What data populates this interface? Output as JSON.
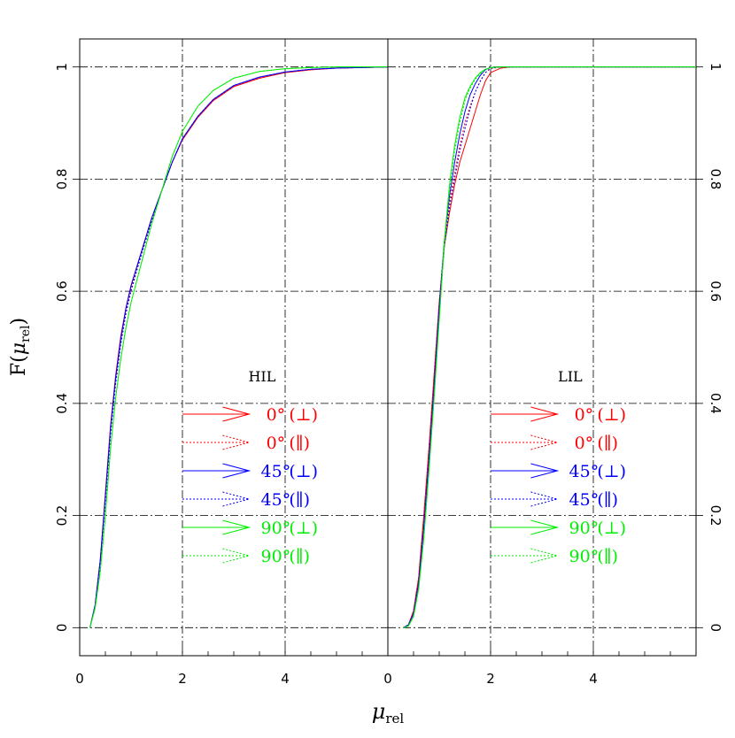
{
  "chart_data": {
    "type": "line",
    "ylabel_main": "F(",
    "ylabel_mu": "μ",
    "ylabel_sub": "rel",
    "ylabel_close": ")",
    "xlabel_mu": "μ",
    "xlabel_sub": "rel",
    "xlim": [
      0,
      6
    ],
    "ylim": [
      -0.05,
      1.05
    ],
    "x_ticks": [
      0,
      2,
      4
    ],
    "x_minor_step": 0.5,
    "y_ticks": [
      0,
      0.2,
      0.4,
      0.6,
      0.8,
      1
    ],
    "y_tick_labels": [
      "0",
      "0.2",
      "0.4",
      "0.6",
      "0.8",
      "1"
    ],
    "x_gridlines": [
      2,
      4
    ],
    "y_gridlines": [
      0,
      0.2,
      0.4,
      0.6,
      0.8,
      1
    ],
    "grid": true,
    "colors": {
      "red": "#ff0000",
      "blue": "#0000ff",
      "green": "#00ee00"
    },
    "legend_entries": [
      {
        "angle": "0°",
        "pol": "(⊥)",
        "color": "red",
        "style": "solid"
      },
      {
        "angle": "0°",
        "pol": "(∥)",
        "color": "red",
        "style": "dotted"
      },
      {
        "angle": "45°",
        "pol": "(⊥)",
        "color": "blue",
        "style": "solid"
      },
      {
        "angle": "45°",
        "pol": "(∥)",
        "color": "blue",
        "style": "dotted"
      },
      {
        "angle": "90°",
        "pol": "(⊥)",
        "color": "green",
        "style": "solid"
      },
      {
        "angle": "90°",
        "pol": "(∥)",
        "color": "green",
        "style": "dotted"
      }
    ],
    "panels": [
      {
        "title": "HIL",
        "legend_position": "center",
        "series": [
          {
            "color": "red",
            "style": "solid",
            "x": [
              0.2,
              0.3,
              0.4,
              0.5,
              0.6,
              0.7,
              0.8,
              0.9,
              1.0,
              1.2,
              1.4,
              1.6,
              1.8,
              2.0,
              2.3,
              2.6,
              3.0,
              3.5,
              4.0,
              4.5,
              5.0,
              5.5,
              6.0
            ],
            "y": [
              0,
              0.04,
              0.12,
              0.24,
              0.36,
              0.45,
              0.52,
              0.57,
              0.61,
              0.67,
              0.73,
              0.78,
              0.83,
              0.87,
              0.91,
              0.94,
              0.965,
              0.98,
              0.99,
              0.995,
              0.998,
              0.999,
              1.0
            ]
          },
          {
            "color": "red",
            "style": "dotted",
            "x": [
              0.2,
              0.3,
              0.4,
              0.5,
              0.6,
              0.7,
              0.8,
              0.9,
              1.0,
              1.2,
              1.4,
              1.6,
              1.8,
              2.0,
              2.3,
              2.6,
              3.0,
              3.5,
              4.0,
              4.5,
              5.0,
              5.5,
              6.0
            ],
            "y": [
              0,
              0.04,
              0.12,
              0.23,
              0.35,
              0.44,
              0.51,
              0.565,
              0.605,
              0.665,
              0.725,
              0.78,
              0.83,
              0.87,
              0.91,
              0.94,
              0.965,
              0.98,
              0.99,
              0.995,
              0.998,
              0.999,
              1.0
            ]
          },
          {
            "color": "blue",
            "style": "solid",
            "x": [
              0.2,
              0.3,
              0.4,
              0.5,
              0.6,
              0.7,
              0.8,
              0.9,
              1.0,
              1.2,
              1.4,
              1.6,
              1.8,
              2.0,
              2.3,
              2.6,
              3.0,
              3.5,
              4.0,
              4.5,
              5.0,
              5.5,
              6.0
            ],
            "y": [
              0,
              0.04,
              0.12,
              0.235,
              0.355,
              0.445,
              0.515,
              0.57,
              0.61,
              0.67,
              0.73,
              0.78,
              0.83,
              0.872,
              0.912,
              0.942,
              0.967,
              0.982,
              0.991,
              0.996,
              0.998,
              0.999,
              1.0
            ]
          },
          {
            "color": "blue",
            "style": "dotted",
            "x": [
              0.2,
              0.3,
              0.4,
              0.5,
              0.6,
              0.7,
              0.8,
              0.9,
              1.0,
              1.2,
              1.4,
              1.6,
              1.8,
              2.0,
              2.3,
              2.6,
              3.0,
              3.5,
              4.0,
              4.5,
              5.0,
              5.5,
              6.0
            ],
            "y": [
              0,
              0.04,
              0.115,
              0.225,
              0.345,
              0.435,
              0.505,
              0.56,
              0.6,
              0.665,
              0.725,
              0.78,
              0.83,
              0.872,
              0.912,
              0.942,
              0.967,
              0.982,
              0.991,
              0.996,
              0.998,
              0.999,
              1.0
            ]
          },
          {
            "color": "green",
            "style": "solid",
            "x": [
              0.2,
              0.3,
              0.4,
              0.5,
              0.6,
              0.7,
              0.8,
              0.9,
              1.0,
              1.2,
              1.4,
              1.6,
              1.8,
              2.0,
              2.3,
              2.6,
              3.0,
              3.5,
              4.0,
              4.5,
              5.0,
              5.5,
              6.0
            ],
            "y": [
              0,
              0.035,
              0.1,
              0.2,
              0.32,
              0.41,
              0.48,
              0.535,
              0.58,
              0.65,
              0.72,
              0.78,
              0.84,
              0.885,
              0.93,
              0.958,
              0.98,
              0.992,
              0.997,
              0.999,
              1.0,
              1.0,
              1.0
            ]
          },
          {
            "color": "green",
            "style": "dotted",
            "x": [
              0.2,
              0.3,
              0.4,
              0.5,
              0.6,
              0.7,
              0.8,
              0.9,
              1.0,
              1.2,
              1.4,
              1.6,
              1.8,
              2.0,
              2.3,
              2.6,
              3.0,
              3.5,
              4.0,
              4.5,
              5.0,
              5.5,
              6.0
            ],
            "y": [
              0,
              0.035,
              0.1,
              0.2,
              0.32,
              0.41,
              0.48,
              0.535,
              0.58,
              0.65,
              0.72,
              0.78,
              0.84,
              0.885,
              0.93,
              0.958,
              0.98,
              0.992,
              0.997,
              0.999,
              1.0,
              1.0,
              1.0
            ]
          }
        ]
      },
      {
        "title": "LIL",
        "legend_position": "center",
        "series": [
          {
            "color": "red",
            "style": "solid",
            "x": [
              0.3,
              0.4,
              0.5,
              0.6,
              0.7,
              0.8,
              0.9,
              1.0,
              1.1,
              1.2,
              1.3,
              1.4,
              1.5,
              1.6,
              1.7,
              1.8,
              1.9,
              2.0,
              2.2,
              2.4,
              6.0
            ],
            "y": [
              0,
              0.005,
              0.03,
              0.09,
              0.2,
              0.32,
              0.45,
              0.58,
              0.68,
              0.74,
              0.79,
              0.83,
              0.86,
              0.89,
              0.92,
              0.95,
              0.975,
              0.99,
              0.998,
              1.0,
              1.0
            ]
          },
          {
            "color": "red",
            "style": "dotted",
            "x": [
              0.3,
              0.4,
              0.5,
              0.6,
              0.7,
              0.8,
              0.9,
              1.0,
              1.1,
              1.2,
              1.3,
              1.4,
              1.5,
              1.6,
              1.7,
              1.8,
              1.9,
              2.0,
              2.2,
              2.4,
              6.0
            ],
            "y": [
              0,
              0.005,
              0.03,
              0.09,
              0.2,
              0.32,
              0.45,
              0.58,
              0.69,
              0.76,
              0.81,
              0.86,
              0.9,
              0.93,
              0.955,
              0.975,
              0.99,
              0.997,
              1.0,
              1.0,
              1.0
            ]
          },
          {
            "color": "blue",
            "style": "solid",
            "x": [
              0.3,
              0.4,
              0.5,
              0.6,
              0.7,
              0.8,
              0.9,
              1.0,
              1.1,
              1.2,
              1.3,
              1.4,
              1.5,
              1.6,
              1.7,
              1.8,
              1.9,
              2.0,
              2.2,
              2.4,
              6.0
            ],
            "y": [
              0,
              0.005,
              0.025,
              0.08,
              0.18,
              0.3,
              0.43,
              0.57,
              0.69,
              0.77,
              0.83,
              0.88,
              0.92,
              0.95,
              0.97,
              0.985,
              0.995,
              0.999,
              1.0,
              1.0,
              1.0
            ]
          },
          {
            "color": "blue",
            "style": "dotted",
            "x": [
              0.3,
              0.4,
              0.5,
              0.6,
              0.7,
              0.8,
              0.9,
              1.0,
              1.1,
              1.2,
              1.3,
              1.4,
              1.5,
              1.6,
              1.7,
              1.8,
              1.9,
              2.0,
              2.2,
              2.4,
              6.0
            ],
            "y": [
              0,
              0.005,
              0.025,
              0.08,
              0.18,
              0.3,
              0.43,
              0.57,
              0.68,
              0.75,
              0.8,
              0.85,
              0.89,
              0.925,
              0.955,
              0.975,
              0.99,
              0.998,
              1.0,
              1.0,
              1.0
            ]
          },
          {
            "color": "green",
            "style": "solid",
            "x": [
              0.3,
              0.4,
              0.5,
              0.6,
              0.7,
              0.8,
              0.9,
              1.0,
              1.1,
              1.2,
              1.3,
              1.4,
              1.5,
              1.6,
              1.7,
              1.8,
              1.9,
              2.0,
              2.2,
              2.4,
              6.0
            ],
            "y": [
              0,
              0.003,
              0.02,
              0.07,
              0.16,
              0.28,
              0.41,
              0.55,
              0.69,
              0.79,
              0.86,
              0.91,
              0.945,
              0.965,
              0.98,
              0.99,
              0.996,
              0.999,
              1.0,
              1.0,
              1.0
            ]
          },
          {
            "color": "green",
            "style": "dotted",
            "x": [
              0.3,
              0.4,
              0.5,
              0.6,
              0.7,
              0.8,
              0.9,
              1.0,
              1.1,
              1.2,
              1.3,
              1.4,
              1.5,
              1.6,
              1.7,
              1.8,
              1.9,
              2.0,
              2.2,
              2.4,
              6.0
            ],
            "y": [
              0,
              0.003,
              0.02,
              0.07,
              0.16,
              0.28,
              0.41,
              0.55,
              0.68,
              0.78,
              0.85,
              0.9,
              0.94,
              0.962,
              0.978,
              0.988,
              0.995,
              0.999,
              1.0,
              1.0,
              1.0
            ]
          }
        ]
      }
    ]
  }
}
